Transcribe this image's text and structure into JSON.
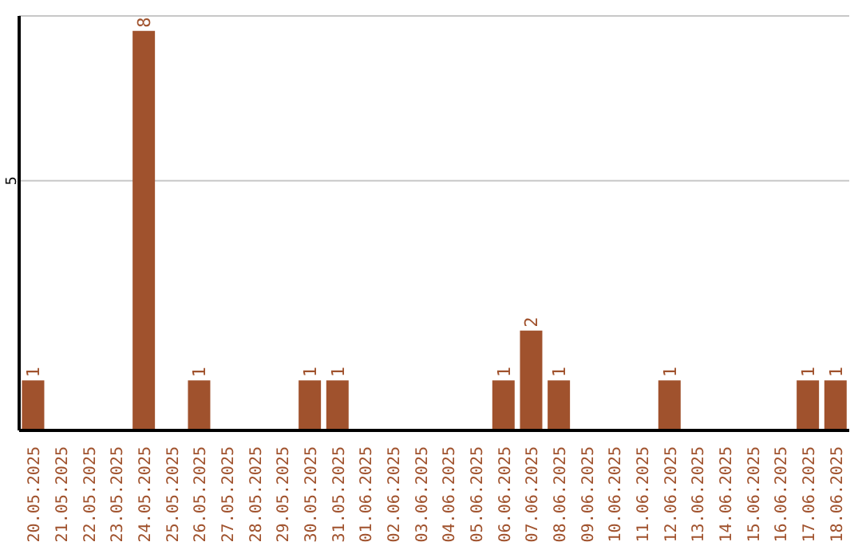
{
  "chart_data": {
    "type": "bar",
    "categories": [
      "20.05.2025",
      "21.05.2025",
      "22.05.2025",
      "23.05.2025",
      "24.05.2025",
      "25.05.2025",
      "26.05.2025",
      "27.05.2025",
      "28.05.2025",
      "29.05.2025",
      "30.05.2025",
      "31.05.2025",
      "01.06.2025",
      "02.06.2025",
      "03.06.2025",
      "04.06.2025",
      "05.06.2025",
      "06.06.2025",
      "07.06.2025",
      "08.06.2025",
      "09.06.2025",
      "10.06.2025",
      "11.06.2025",
      "12.06.2025",
      "13.06.2025",
      "14.06.2025",
      "15.06.2025",
      "16.06.2025",
      "17.06.2025",
      "18.06.2025"
    ],
    "values": [
      1,
      0,
      0,
      0,
      8,
      0,
      1,
      0,
      0,
      0,
      1,
      1,
      0,
      0,
      0,
      0,
      0,
      1,
      2,
      1,
      0,
      0,
      0,
      1,
      0,
      0,
      0,
      0,
      1,
      1
    ],
    "value_labels": [
      "1",
      null,
      null,
      null,
      "8",
      null,
      "1",
      null,
      null,
      null,
      "1",
      "1",
      null,
      null,
      null,
      null,
      null,
      "1",
      "2",
      "1",
      null,
      null,
      null,
      "1",
      null,
      null,
      null,
      null,
      "1",
      "1"
    ],
    "color": "#a0522d",
    "ylim": [
      0,
      8.3
    ],
    "yticks": [
      5
    ],
    "grid": "y"
  }
}
